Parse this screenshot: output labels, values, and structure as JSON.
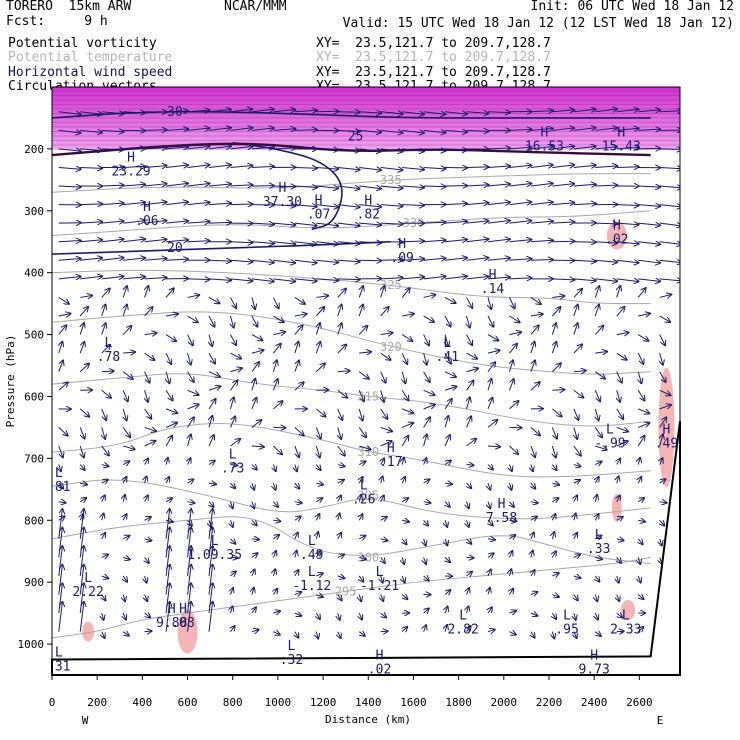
{
  "header": {
    "model": "TORERO  15km ARW",
    "center": "NCAR/MMM",
    "fcst": "Fcst:     9 h",
    "init": "Init: 06 UTC Wed 18 Jan 12",
    "valid": "Valid: 15 UTC Wed 18 Jan 12 (12 LST Wed 18 Jan 12)"
  },
  "fields": [
    {
      "label": "Potential vorticity",
      "xy": "XY=  23.5,121.7 to 209.7,128.7",
      "color": "#000000"
    },
    {
      "label": "Potential temperature",
      "xy": "XY=  23.5,121.7 to 209.7,128.7",
      "color": "#b4b4b4"
    },
    {
      "label": "Horizontal wind speed",
      "xy": "XY=  23.5,121.7 to 209.7,128.7",
      "color": "#141464"
    },
    {
      "label": "Circulation vectors",
      "xy": "XY=  23.5,121.7 to 209.7,128.7",
      "color": "#000000"
    }
  ],
  "colors": {
    "wind_vectors": "#1a1a6e",
    "theta": "#a8a8a8",
    "pv_fill_strong": "#d030d0",
    "pv_fill_light": "#f0a0f0",
    "pv_low": "#f4a8a8",
    "terrain": "#000000"
  },
  "chart_data": {
    "type": "cross-section",
    "xlabel": "Distance (km)",
    "ylabel": "Pressure (hPa)",
    "xlim": [
      0,
      2780
    ],
    "ylim": [
      1050,
      100
    ],
    "y_log_scale": false,
    "x_ticks": [
      "0",
      "200",
      "400",
      "600",
      "800",
      "1000",
      "1200",
      "1400",
      "1600",
      "1800",
      "2000",
      "2200",
      "2400",
      "2600"
    ],
    "y_ticks": [
      "200",
      "300",
      "400",
      "500",
      "600",
      "700",
      "800",
      "900",
      "1000"
    ],
    "endpoints": {
      "left": "W",
      "right": "E"
    },
    "theta_levels": [
      {
        "value": "295",
        "points": [
          [
            0,
            990
          ],
          [
            200,
            980
          ],
          [
            400,
            960
          ],
          [
            600,
            950
          ],
          [
            800,
            940
          ],
          [
            1000,
            930
          ],
          [
            1300,
            915
          ],
          [
            1600,
            900
          ],
          [
            1900,
            890
          ],
          [
            2200,
            880
          ],
          [
            2500,
            870
          ],
          [
            2650,
            860
          ]
        ]
      },
      {
        "value": "300",
        "points": [
          [
            0,
            830
          ],
          [
            300,
            810
          ],
          [
            600,
            800
          ],
          [
            900,
            790
          ],
          [
            1150,
            850
          ],
          [
            1400,
            860
          ],
          [
            1700,
            840
          ],
          [
            2000,
            820
          ],
          [
            2200,
            840
          ],
          [
            2400,
            860
          ],
          [
            2650,
            870
          ]
        ]
      },
      {
        "value": "305",
        "points": [
          [
            0,
            745
          ],
          [
            300,
            730
          ],
          [
            700,
            760
          ],
          [
            1000,
            790
          ],
          [
            1200,
            780
          ],
          [
            1400,
            760
          ],
          [
            1700,
            790
          ],
          [
            2100,
            800
          ],
          [
            2400,
            790
          ],
          [
            2650,
            780
          ]
        ]
      },
      {
        "value": "310",
        "points": [
          [
            0,
            690
          ],
          [
            300,
            680
          ],
          [
            500,
            650
          ],
          [
            800,
            640
          ],
          [
            1200,
            670
          ],
          [
            1400,
            690
          ],
          [
            1600,
            700
          ],
          [
            2000,
            730
          ],
          [
            2300,
            730
          ],
          [
            2650,
            720
          ]
        ]
      },
      {
        "value": "315",
        "points": [
          [
            0,
            580
          ],
          [
            300,
            570
          ],
          [
            600,
            560
          ],
          [
            900,
            580
          ],
          [
            1200,
            590
          ],
          [
            1400,
            600
          ],
          [
            1700,
            610
          ],
          [
            2100,
            640
          ],
          [
            2400,
            650
          ],
          [
            2650,
            640
          ]
        ]
      },
      {
        "value": "320",
        "points": [
          [
            0,
            480
          ],
          [
            300,
            470
          ],
          [
            700,
            460
          ],
          [
            1100,
            480
          ],
          [
            1500,
            520
          ],
          [
            1900,
            550
          ],
          [
            2200,
            560
          ],
          [
            2400,
            565
          ],
          [
            2650,
            560
          ]
        ]
      },
      {
        "value": "325",
        "points": [
          [
            0,
            400
          ],
          [
            400,
            395
          ],
          [
            800,
            400
          ],
          [
            1200,
            410
          ],
          [
            1500,
            420
          ],
          [
            1900,
            440
          ],
          [
            2200,
            440
          ],
          [
            2400,
            450
          ],
          [
            2650,
            450
          ]
        ]
      },
      {
        "value": "330",
        "points": [
          [
            0,
            340
          ],
          [
            400,
            330
          ],
          [
            800,
            320
          ],
          [
            1200,
            330
          ],
          [
            1600,
            320
          ],
          [
            2000,
            310
          ],
          [
            2300,
            310
          ],
          [
            2650,
            300
          ]
        ]
      },
      {
        "value": "335",
        "points": [
          [
            0,
            270
          ],
          [
            500,
            260
          ],
          [
            1000,
            265
          ],
          [
            1500,
            250
          ],
          [
            1900,
            245
          ],
          [
            2300,
            240
          ],
          [
            2650,
            240
          ]
        ]
      }
    ],
    "wind_speed_contours": [
      {
        "value": "20",
        "points": [
          [
            0,
            370
          ],
          [
            400,
            365
          ],
          [
            800,
            360
          ],
          [
            1200,
            355
          ],
          [
            1500,
            350
          ]
        ]
      },
      {
        "value": "25",
        "points": [
          [
            800,
            190
          ],
          [
            1000,
            200
          ],
          [
            1200,
            220
          ],
          [
            1300,
            260
          ],
          [
            1250,
            320
          ],
          [
            1150,
            330
          ]
        ]
      },
      {
        "value": "30",
        "points": [
          [
            0,
            150
          ],
          [
            400,
            140
          ],
          [
            800,
            140
          ],
          [
            1200,
            145
          ],
          [
            1600,
            150
          ],
          [
            2100,
            150
          ],
          [
            2650,
            150
          ]
        ]
      }
    ],
    "pv_highs": [
      {
        "label": "H",
        "value": "16.53",
        "x": 2180,
        "p": 180
      },
      {
        "label": "H",
        "value": "15.43",
        "x": 2520,
        "p": 180
      },
      {
        "label": "H",
        "value": ".02",
        "x": 2500,
        "p": 330
      },
      {
        "label": "H",
        "value": ".09",
        "x": 1550,
        "p": 360
      },
      {
        "label": "H",
        "value": ".14",
        "x": 1950,
        "p": 410
      },
      {
        "label": "H",
        "value": ".17",
        "x": 1500,
        "p": 690
      },
      {
        "label": "H",
        "value": ".49",
        "x": 2720,
        "p": 660
      },
      {
        "label": "H",
        "value": "7.58",
        "x": 1990,
        "p": 780
      },
      {
        "label": "H",
        "value": "9.88",
        "x": 530,
        "p": 950
      },
      {
        "label": "H",
        "value": ".08",
        "x": 580,
        "p": 950
      },
      {
        "label": "H",
        "value": "9.73",
        "x": 2400,
        "p": 1025
      },
      {
        "label": "H",
        "value": ".06",
        "x": 420,
        "p": 300
      },
      {
        "label": "H",
        "value": ".82",
        "x": 1400,
        "p": 290
      },
      {
        "label": "H",
        "value": ".07",
        "x": 1180,
        "p": 290
      },
      {
        "label": "H",
        "value": "37.30",
        "x": 1020,
        "p": 270
      },
      {
        "label": "H",
        "value": "23.29",
        "x": 350,
        "p": 220
      },
      {
        "label": "H",
        "value": ".02",
        "x": 1450,
        "p": 1025
      }
    ],
    "pv_lows": [
      {
        "label": "L",
        "value": ".78",
        "x": 250,
        "p": 520
      },
      {
        "label": "L",
        "value": ".41",
        "x": 1750,
        "p": 520
      },
      {
        "label": "L",
        "value": ".73",
        "x": 800,
        "p": 700
      },
      {
        "label": "L",
        "value": ".26",
        "x": 1380,
        "p": 750
      },
      {
        "label": "L",
        "value": "1.09.35",
        "x": 720,
        "p": 840
      },
      {
        "label": "L",
        "value": ".49",
        "x": 1150,
        "p": 840
      },
      {
        "label": "L",
        "value": "-1.12",
        "x": 1150,
        "p": 890
      },
      {
        "label": "L",
        "value": "-1.21",
        "x": 1450,
        "p": 890
      },
      {
        "label": "L",
        "value": ".33",
        "x": 2420,
        "p": 830
      },
      {
        "label": "L",
        "value": "-.99",
        "x": 2470,
        "p": 660
      },
      {
        "label": "L",
        "value": "2.82",
        "x": 1820,
        "p": 960
      },
      {
        "label": "L",
        "value": ".95",
        "x": 2280,
        "p": 960
      },
      {
        "label": "L",
        "value": "2.33",
        "x": 2540,
        "p": 960
      },
      {
        "label": "L",
        "value": ".32",
        "x": 1060,
        "p": 1010
      },
      {
        "label": "L",
        "value": ".31",
        "x": 30,
        "p": 1020
      },
      {
        "label": "L",
        "value": ".81",
        "x": 30,
        "p": 730
      },
      {
        "label": "L",
        "value": "2.22",
        "x": 160,
        "p": 900
      }
    ]
  }
}
